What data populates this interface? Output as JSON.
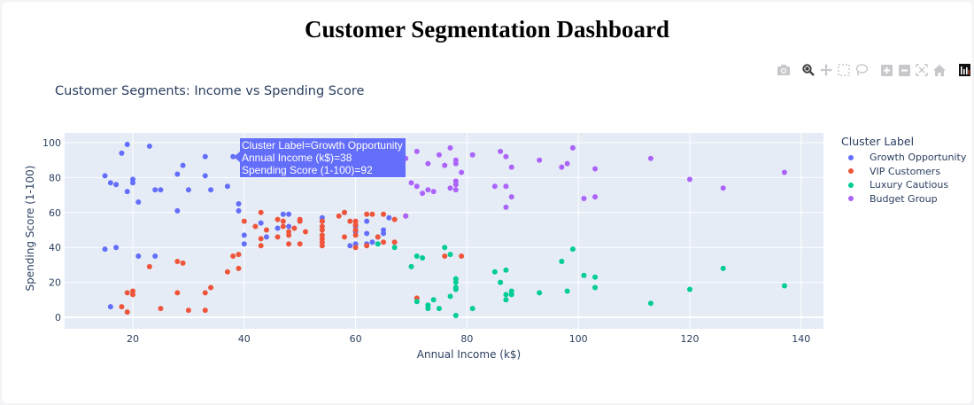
{
  "page": {
    "title": "Customer Segmentation Dashboard"
  },
  "modebar": {
    "buttons": [
      "camera-icon",
      "zoom-icon",
      "pan-icon",
      "box-select-icon",
      "lasso-select-icon",
      "zoom-in-icon",
      "zoom-out-icon",
      "autoscale-icon",
      "reset-axes-icon",
      "plotly-logo-icon"
    ],
    "active": "zoom-icon"
  },
  "chart": {
    "title": "Customer Segments: Income vs Spending Score",
    "xlabel": "Annual Income (k$)",
    "ylabel": "Spending Score (1-100)",
    "xticks": [
      "20",
      "40",
      "60",
      "80",
      "100",
      "120",
      "140"
    ],
    "yticks": [
      "0",
      "20",
      "40",
      "60",
      "80",
      "100"
    ],
    "legend_title": "Cluster Label",
    "tooltip": {
      "line1": "Cluster Label=Growth Opportunity",
      "line2": "Annual Income (k$)=38",
      "line3": "Spending Score (1-100)=92"
    }
  },
  "chart_data": {
    "type": "scatter",
    "title": "Customer Segments: Income vs Spending Score",
    "xlabel": "Annual Income (k$)",
    "ylabel": "Spending Score (1-100)",
    "xlim": [
      7,
      144
    ],
    "ylim": [
      -6,
      106
    ],
    "grid": true,
    "legend_position": "right",
    "legend_title": "Cluster Label",
    "series": [
      {
        "name": "Growth Opportunity",
        "color": "#636efa",
        "points": [
          [
            15,
            39
          ],
          [
            15,
            81
          ],
          [
            16,
            6
          ],
          [
            16,
            77
          ],
          [
            17,
            40
          ],
          [
            17,
            76
          ],
          [
            18,
            94
          ],
          [
            19,
            72
          ],
          [
            19,
            99
          ],
          [
            20,
            77
          ],
          [
            20,
            79
          ],
          [
            21,
            35
          ],
          [
            21,
            66
          ],
          [
            23,
            98
          ],
          [
            24,
            35
          ],
          [
            24,
            73
          ],
          [
            25,
            73
          ],
          [
            28,
            82
          ],
          [
            28,
            61
          ],
          [
            29,
            87
          ],
          [
            30,
            73
          ],
          [
            33,
            92
          ],
          [
            33,
            81
          ],
          [
            34,
            73
          ],
          [
            37,
            75
          ],
          [
            38,
            92
          ],
          [
            39,
            61
          ],
          [
            39,
            65
          ],
          [
            40,
            47
          ],
          [
            40,
            42
          ],
          [
            43,
            54
          ],
          [
            44,
            46
          ],
          [
            46,
            51
          ],
          [
            47,
            59
          ],
          [
            48,
            59
          ],
          [
            48,
            52
          ],
          [
            54,
            57
          ],
          [
            54,
            55
          ],
          [
            58,
            60
          ],
          [
            59,
            41
          ],
          [
            60,
            42
          ],
          [
            60,
            52
          ],
          [
            60,
            49
          ],
          [
            62,
            42
          ],
          [
            62,
            48
          ],
          [
            62,
            55
          ],
          [
            63,
            43
          ],
          [
            64,
            46
          ],
          [
            65,
            48
          ],
          [
            65,
            50
          ],
          [
            66,
            57
          ]
        ]
      },
      {
        "name": "VIP Customers",
        "color": "#ef553b",
        "points": [
          [
            18,
            6
          ],
          [
            19,
            3
          ],
          [
            19,
            14
          ],
          [
            20,
            13
          ],
          [
            20,
            15
          ],
          [
            23,
            29
          ],
          [
            25,
            5
          ],
          [
            28,
            14
          ],
          [
            28,
            32
          ],
          [
            29,
            31
          ],
          [
            30,
            4
          ],
          [
            33,
            4
          ],
          [
            33,
            14
          ],
          [
            34,
            17
          ],
          [
            37,
            26
          ],
          [
            38,
            35
          ],
          [
            39,
            36
          ],
          [
            39,
            28
          ],
          [
            40,
            55
          ],
          [
            42,
            52
          ],
          [
            43,
            60
          ],
          [
            43,
            45
          ],
          [
            43,
            41
          ],
          [
            44,
            50
          ],
          [
            46,
            46
          ],
          [
            46,
            56
          ],
          [
            47,
            55
          ],
          [
            47,
            52
          ],
          [
            48,
            49
          ],
          [
            48,
            47
          ],
          [
            48,
            42
          ],
          [
            49,
            51
          ],
          [
            50,
            42
          ],
          [
            50,
            55
          ],
          [
            50,
            56
          ],
          [
            51,
            49
          ],
          [
            54,
            55
          ],
          [
            54,
            52
          ],
          [
            54,
            50
          ],
          [
            54,
            47
          ],
          [
            54,
            45
          ],
          [
            54,
            43
          ],
          [
            54,
            41
          ],
          [
            57,
            58
          ],
          [
            58,
            60
          ],
          [
            58,
            46
          ],
          [
            59,
            55
          ],
          [
            60,
            40
          ],
          [
            60,
            47
          ],
          [
            60,
            50
          ],
          [
            60,
            53
          ],
          [
            60,
            55
          ],
          [
            62,
            41
          ],
          [
            62,
            59
          ],
          [
            63,
            59
          ],
          [
            64,
            46
          ],
          [
            65,
            43
          ],
          [
            65,
            59
          ],
          [
            67,
            56
          ],
          [
            67,
            43
          ],
          [
            69,
            58
          ],
          [
            71,
            11
          ],
          [
            76,
            35
          ],
          [
            79,
            35
          ]
        ]
      },
      {
        "name": "Luxury Cautious",
        "color": "#00cc96",
        "points": [
          [
            64,
            42
          ],
          [
            67,
            40
          ],
          [
            70,
            29
          ],
          [
            71,
            35
          ],
          [
            71,
            9
          ],
          [
            72,
            34
          ],
          [
            73,
            5
          ],
          [
            73,
            7
          ],
          [
            74,
            10
          ],
          [
            75,
            5
          ],
          [
            76,
            40
          ],
          [
            77,
            12
          ],
          [
            77,
            36
          ],
          [
            78,
            1
          ],
          [
            78,
            17
          ],
          [
            78,
            20
          ],
          [
            78,
            22
          ],
          [
            78,
            16
          ],
          [
            81,
            5
          ],
          [
            85,
            26
          ],
          [
            86,
            20
          ],
          [
            87,
            10
          ],
          [
            87,
            27
          ],
          [
            87,
            13
          ],
          [
            88,
            13
          ],
          [
            88,
            15
          ],
          [
            93,
            14
          ],
          [
            97,
            32
          ],
          [
            98,
            15
          ],
          [
            99,
            39
          ],
          [
            101,
            24
          ],
          [
            103,
            17
          ],
          [
            103,
            23
          ],
          [
            113,
            8
          ],
          [
            120,
            16
          ],
          [
            126,
            28
          ],
          [
            137,
            18
          ]
        ]
      },
      {
        "name": "Budget Group",
        "color": "#ab63fa",
        "points": [
          [
            69,
            58
          ],
          [
            69,
            91
          ],
          [
            70,
            77
          ],
          [
            71,
            95
          ],
          [
            71,
            75
          ],
          [
            72,
            71
          ],
          [
            73,
            88
          ],
          [
            73,
            73
          ],
          [
            74,
            72
          ],
          [
            75,
            93
          ],
          [
            76,
            87
          ],
          [
            77,
            97
          ],
          [
            77,
            74
          ],
          [
            78,
            90
          ],
          [
            78,
            88
          ],
          [
            78,
            78
          ],
          [
            78,
            76
          ],
          [
            78,
            73
          ],
          [
            79,
            83
          ],
          [
            81,
            93
          ],
          [
            85,
            75
          ],
          [
            86,
            95
          ],
          [
            87,
            92
          ],
          [
            87,
            75
          ],
          [
            87,
            63
          ],
          [
            88,
            86
          ],
          [
            88,
            69
          ],
          [
            93,
            90
          ],
          [
            97,
            86
          ],
          [
            98,
            88
          ],
          [
            99,
            97
          ],
          [
            101,
            68
          ],
          [
            103,
            85
          ],
          [
            103,
            69
          ],
          [
            113,
            91
          ],
          [
            120,
            79
          ],
          [
            126,
            74
          ],
          [
            137,
            83
          ]
        ]
      }
    ]
  }
}
